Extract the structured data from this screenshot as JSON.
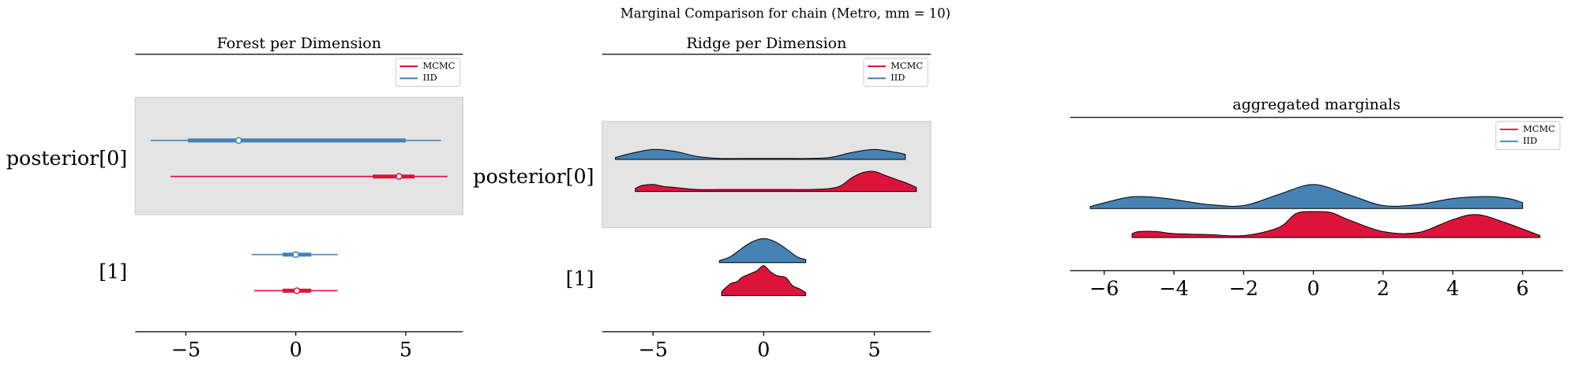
{
  "title": "Marginal Comparison for chain (Metro, mm = 10)",
  "chart_data": [
    {
      "type": "forest",
      "title": "Forest per Dimension",
      "rows": [
        "posterior[0]",
        "[1]"
      ],
      "legend": "upper right",
      "xlim": [
        -7.3,
        7.6
      ],
      "xticks": [
        {
          "value": -5,
          "label": "−5"
        },
        0,
        5
      ],
      "series": [
        {
          "name": "MCMC",
          "color": "#dc143c",
          "hdi": [
            [
              -5.7,
              6.9
            ],
            [
              -1.9,
              1.9
            ]
          ],
          "iqr": [
            [
              3.5,
              5.4
            ],
            [
              -0.6,
              0.7
            ]
          ],
          "median": [
            4.7,
            0.05
          ]
        },
        {
          "name": "IID",
          "color": "#4682b4",
          "hdi": [
            [
              -6.6,
              6.6
            ],
            [
              -2.0,
              1.9
            ]
          ],
          "iqr": [
            [
              -4.9,
              5.0
            ],
            [
              -0.6,
              0.7
            ]
          ],
          "median": [
            -2.6,
            0
          ]
        }
      ]
    },
    {
      "type": "ridge",
      "title": "Ridge per Dimension",
      "rows": [
        "posterior[0]",
        "[1]"
      ],
      "legend": "upper right",
      "xlim": [
        -7.3,
        7.55
      ],
      "xticks": [
        {
          "value": -5,
          "label": "−5"
        },
        0,
        5
      ],
      "series": [
        {
          "name": "MCMC",
          "color": "#dc143c",
          "ridges": [
            {
              "x": [
                -5.8,
                -5.5,
                -5,
                -4.5,
                -4,
                -3,
                -2,
                -1,
                0,
                1,
                2,
                3,
                3.5,
                4,
                4.5,
                5,
                5.5,
                6,
                6.5,
                6.9
              ],
              "density": [
                0.03,
                0.06,
                0.07,
                0.05,
                0.04,
                0.02,
                0.02,
                0.02,
                0.02,
                0.02,
                0.02,
                0.03,
                0.06,
                0.14,
                0.19,
                0.2,
                0.16,
                0.12,
                0.08,
                0.04
              ]
            },
            {
              "x": [
                -1.9,
                -1.5,
                -1.2,
                -1,
                -0.6,
                -0.3,
                0,
                0.3,
                0.6,
                1,
                1.3,
                1.6,
                1.9
              ],
              "density": [
                0.04,
                0.12,
                0.14,
                0.18,
                0.22,
                0.25,
                0.3,
                0.24,
                0.2,
                0.18,
                0.1,
                0.07,
                0.03
              ]
            }
          ]
        },
        {
          "name": "IID",
          "color": "#4682b4",
          "ridges": [
            {
              "x": [
                -6.7,
                -6,
                -5,
                -4,
                -3,
                -2,
                -1,
                0,
                1,
                2,
                3,
                4,
                5,
                6,
                6.4
              ],
              "density": [
                0.02,
                0.06,
                0.1,
                0.08,
                0.03,
                0.01,
                0.01,
                0.01,
                0.01,
                0.01,
                0.02,
                0.07,
                0.1,
                0.07,
                0.05
              ]
            },
            {
              "x": [
                -2,
                -1.5,
                -1,
                -0.5,
                0,
                0.5,
                1,
                1.5,
                1.9
              ],
              "density": [
                0.02,
                0.06,
                0.14,
                0.21,
                0.24,
                0.21,
                0.14,
                0.06,
                0.03
              ]
            }
          ]
        }
      ]
    },
    {
      "type": "kde",
      "title": "aggregated marginals",
      "legend": "upper right",
      "xlim": [
        -6.98,
        7.16
      ],
      "xticks": [
        {
          "value": -6,
          "label": "−6"
        },
        {
          "value": -4,
          "label": "−4"
        },
        {
          "value": -2,
          "label": "−2"
        },
        0,
        2,
        4,
        6
      ],
      "series": [
        {
          "name": "MCMC",
          "color": "#dc143c",
          "x": [
            -5.2,
            -5,
            -4.5,
            -4,
            -3,
            -2,
            -1,
            -0.5,
            0,
            0.5,
            1,
            2,
            3,
            4,
            4.7,
            5.5,
            6.5
          ],
          "density": [
            0.04,
            0.06,
            0.06,
            0.04,
            0.03,
            0.02,
            0.1,
            0.24,
            0.26,
            0.25,
            0.18,
            0.06,
            0.05,
            0.18,
            0.23,
            0.15,
            0.02
          ]
        },
        {
          "name": "IID",
          "color": "#4682b4",
          "x": [
            -6.4,
            -5.5,
            -5,
            -4.2,
            -3,
            -2,
            -1,
            0,
            1,
            2,
            3,
            4,
            5,
            5.6,
            6.0
          ],
          "density": [
            0.02,
            0.1,
            0.12,
            0.1,
            0.04,
            0.03,
            0.14,
            0.24,
            0.14,
            0.03,
            0.04,
            0.1,
            0.12,
            0.1,
            0.06
          ]
        }
      ]
    }
  ]
}
